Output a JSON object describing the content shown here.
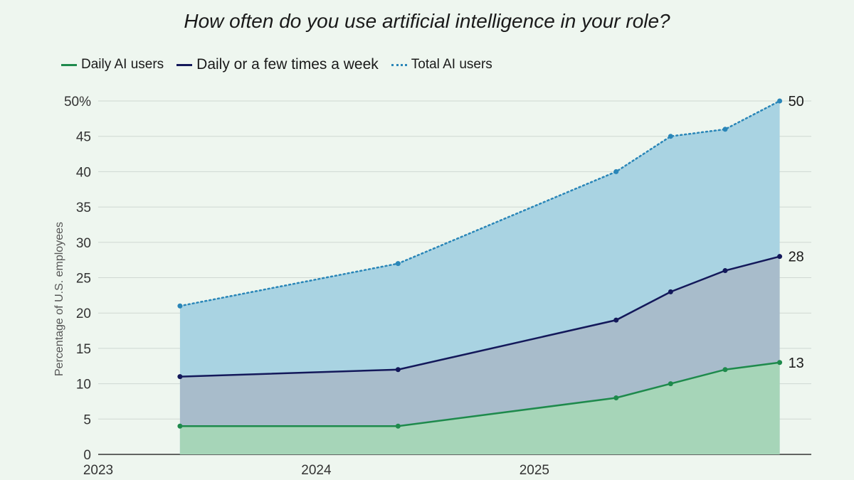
{
  "chart_data": {
    "type": "area",
    "title": "How often do you use artificial intelligence in your role?",
    "xlabel": "",
    "ylabel": "Percentage of U.S. employees",
    "x_ticks": [
      "2023",
      "2024",
      "2025"
    ],
    "x_range": [
      2023.0,
      2026.15
    ],
    "y_ticks": [
      "0",
      "5",
      "10",
      "15",
      "20",
      "25",
      "30",
      "35",
      "40",
      "45",
      "50%"
    ],
    "ylim": [
      0,
      50
    ],
    "grid": "horizontal",
    "legend_position": "top-left",
    "x": [
      2023.375,
      2024.375,
      2025.375,
      2025.625,
      2025.875,
      2026.125
    ],
    "series": [
      {
        "name": "Daily AI users",
        "color": "#1e8a4c",
        "fill": "#a6d5b8",
        "style": "solid",
        "values": [
          4,
          4,
          8,
          10,
          12,
          13
        ],
        "end_label": "13"
      },
      {
        "name": "Daily or a few times a week",
        "color": "#13185a",
        "fill": "#a8bccb",
        "style": "solid",
        "values": [
          11,
          12,
          19,
          23,
          26,
          28
        ],
        "end_label": "28"
      },
      {
        "name": "Total AI users",
        "color": "#2a86b8",
        "fill": "#a9d3e2",
        "style": "dotted",
        "values": [
          21,
          27,
          40,
          45,
          46,
          50
        ],
        "end_label": "50"
      }
    ]
  }
}
